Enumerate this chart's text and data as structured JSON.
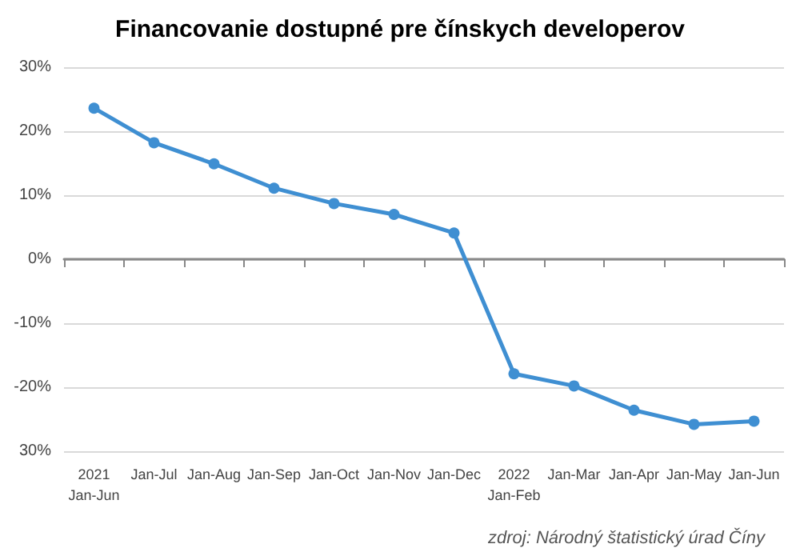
{
  "chart_data": {
    "type": "line",
    "title": "Financovanie dostupné pre čínskych developerov",
    "categories": [
      "2021\nJan-Jun",
      "Jan-Jul",
      "Jan-Aug",
      "Jan-Sep",
      "Jan-Oct",
      "Jan-Nov",
      "Jan-Dec",
      "2022\nJan-Feb",
      "Jan-Mar",
      "Jan-Apr",
      "Jan-May",
      "Jan-Jun"
    ],
    "series": [
      {
        "color": "#3f8fd2",
        "values": [
          23.6,
          18.2,
          14.9,
          11.1,
          8.7,
          7.0,
          4.1,
          -17.9,
          -19.8,
          -23.6,
          -25.8,
          -25.3
        ]
      }
    ],
    "ylim": [
      -30,
      30
    ],
    "yticks": [
      {
        "value": -30,
        "label": "30%"
      },
      {
        "value": -20,
        "label": "-20%"
      },
      {
        "value": -10,
        "label": "-10%"
      },
      {
        "value": 0,
        "label": "0%"
      },
      {
        "value": 10,
        "label": "10%"
      },
      {
        "value": 20,
        "label": "20%"
      },
      {
        "value": 30,
        "label": "30%"
      }
    ],
    "grid": "y",
    "marker": "circle",
    "line_style": "solid",
    "annotations": [
      "zdroj: Národný štatistický úrad Číny"
    ]
  }
}
